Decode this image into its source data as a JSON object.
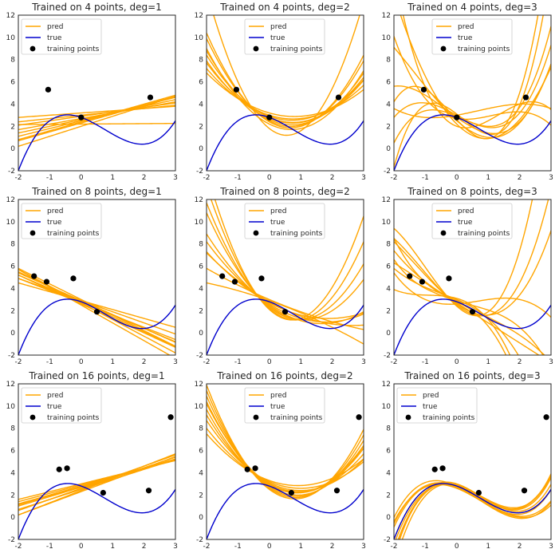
{
  "figure": {
    "legend": [
      "pred",
      "true",
      "training points"
    ],
    "colors": {
      "pred": "#ffa500",
      "true": "#0000cd",
      "points": "#000000",
      "frame": "#262626"
    },
    "xlim": [
      -2,
      3
    ],
    "ylim": [
      -2,
      12
    ],
    "x_ticks": [
      "-2",
      "-1",
      "0",
      "1",
      "2",
      "3"
    ],
    "y_ticks": [
      "-2",
      "0",
      "2",
      "4",
      "6",
      "8",
      "10",
      "12"
    ]
  },
  "chart_data": [
    {
      "type": "line",
      "title": "Trained on 4 points, deg=1",
      "true_coeffs": [
        2.8,
        -1.0,
        -0.9,
        0.4
      ],
      "points": [
        [
          -1.05,
          5.3
        ],
        [
          0.0,
          2.8
        ],
        [
          2.2,
          4.6
        ]
      ],
      "predictions": [
        [
          2.4,
          0.8
        ],
        [
          2.6,
          0.6
        ],
        [
          3.0,
          0.3
        ],
        [
          2.7,
          0.5
        ],
        [
          2.0,
          0.9
        ],
        [
          3.2,
          0.2
        ],
        [
          2.5,
          0.7
        ],
        [
          2.2,
          0.02
        ],
        [
          2.9,
          0.4
        ],
        [
          2.3,
          0.8
        ]
      ],
      "xlim": [
        -2,
        3
      ],
      "ylim": [
        -2,
        12
      ]
    },
    {
      "type": "line",
      "title": "Trained on 4 points, deg=2",
      "true_coeffs": [
        2.8,
        -1.0,
        -0.9,
        0.4
      ],
      "points": [
        [
          -1.05,
          5.3
        ],
        [
          0.0,
          2.8
        ],
        [
          2.2,
          4.6
        ]
      ],
      "predictions": [
        [
          2.8,
          -1.2,
          0.8
        ],
        [
          3.0,
          -0.9,
          0.6
        ],
        [
          2.5,
          -1.5,
          1.1
        ],
        [
          1.8,
          -2.2,
          2.0
        ],
        [
          2.9,
          -1.0,
          0.7
        ],
        [
          2.6,
          -1.3,
          0.9
        ],
        [
          3.2,
          -0.8,
          0.5
        ],
        [
          2.4,
          -1.6,
          1.2
        ],
        [
          2.7,
          -1.1,
          0.75
        ],
        [
          2.2,
          -1.4,
          1.0
        ]
      ],
      "xlim": [
        -2,
        3
      ],
      "ylim": [
        -2,
        12
      ]
    },
    {
      "type": "line",
      "title": "Trained on 4 points, deg=3",
      "true_coeffs": [
        2.8,
        -1.0,
        -0.9,
        0.4
      ],
      "points": [
        [
          -1.05,
          5.3
        ],
        [
          0.0,
          2.8
        ],
        [
          2.2,
          4.6
        ]
      ],
      "predictions": [
        [
          2.8,
          -2.0,
          0.3,
          0.3
        ],
        [
          3.0,
          -1.5,
          0.0,
          0.4
        ],
        [
          2.5,
          -2.5,
          0.8,
          0.2
        ],
        [
          2.0,
          -1.0,
          2.0,
          -0.5
        ],
        [
          3.0,
          0.5,
          0.2,
          -0.1
        ],
        [
          2.6,
          -3.0,
          0.5,
          0.8
        ],
        [
          2.9,
          -1.2,
          -0.2,
          0.5
        ],
        [
          2.2,
          -2.8,
          1.5,
          0.0
        ],
        [
          2.7,
          -0.5,
          1.0,
          -0.3
        ],
        [
          3.1,
          -2.2,
          -0.5,
          0.9
        ]
      ],
      "xlim": [
        -2,
        3
      ],
      "ylim": [
        -2,
        12
      ]
    },
    {
      "type": "line",
      "title": "Trained on 8 points, deg=1",
      "true_coeffs": [
        2.8,
        -1.0,
        -0.9,
        0.4
      ],
      "points": [
        [
          -1.5,
          5.1
        ],
        [
          -1.1,
          4.6
        ],
        [
          -0.25,
          4.9
        ],
        [
          0.5,
          1.9
        ]
      ],
      "predictions": [
        [
          2.8,
          -1.2
        ],
        [
          2.7,
          -1.5
        ],
        [
          2.9,
          -1.0
        ],
        [
          2.6,
          -1.3
        ],
        [
          3.0,
          -1.4
        ],
        [
          2.5,
          -1.6
        ],
        [
          2.9,
          -0.8
        ],
        [
          2.8,
          -1.35
        ],
        [
          2.7,
          -1.1
        ],
        [
          2.9,
          -1.25
        ]
      ],
      "xlim": [
        -2,
        3
      ],
      "ylim": [
        -2,
        12
      ]
    },
    {
      "type": "line",
      "title": "Trained on 8 points, deg=2",
      "true_coeffs": [
        2.8,
        -1.0,
        -0.9,
        0.4
      ],
      "points": [
        [
          -1.5,
          5.1
        ],
        [
          -1.1,
          4.6
        ],
        [
          -0.25,
          4.9
        ],
        [
          0.5,
          1.9
        ]
      ],
      "predictions": [
        [
          2.5,
          -2.0,
          0.6
        ],
        [
          2.8,
          -1.6,
          0.3
        ],
        [
          2.4,
          -2.2,
          1.0
        ],
        [
          3.0,
          -1.2,
          0.1
        ],
        [
          2.2,
          -2.5,
          1.5
        ],
        [
          2.9,
          -1.0,
          -0.1
        ],
        [
          2.6,
          -1.8,
          0.5
        ],
        [
          2.3,
          -2.3,
          1.2
        ],
        [
          2.7,
          -1.5,
          0.4
        ],
        [
          2.1,
          -2.6,
          1.8
        ]
      ],
      "xlim": [
        -2,
        3
      ],
      "ylim": [
        -2,
        12
      ]
    },
    {
      "type": "line",
      "title": "Trained on 8 points, deg=3",
      "true_coeffs": [
        2.8,
        -1.0,
        -0.9,
        0.4
      ],
      "points": [
        [
          -1.5,
          5.1
        ],
        [
          -1.1,
          4.6
        ],
        [
          -0.25,
          4.9
        ],
        [
          0.5,
          1.9
        ]
      ],
      "predictions": [
        [
          2.8,
          -1.5,
          0.2,
          -0.1
        ],
        [
          2.6,
          -2.0,
          0.8,
          0.2
        ],
        [
          3.0,
          -1.2,
          -0.3,
          -0.2
        ],
        [
          2.5,
          -2.2,
          1.0,
          0.3
        ],
        [
          3.1,
          -0.8,
          -0.8,
          -0.3
        ],
        [
          2.4,
          -2.5,
          1.5,
          0.5
        ],
        [
          2.9,
          -1.0,
          0.4,
          -0.25
        ],
        [
          2.7,
          -1.8,
          0.0,
          0.0
        ],
        [
          2.6,
          0.2,
          0.4,
          -0.2
        ],
        [
          2.8,
          -1.3,
          -0.5,
          -0.4
        ]
      ],
      "xlim": [
        -2,
        3
      ],
      "ylim": [
        -2,
        12
      ]
    },
    {
      "type": "line",
      "title": "Trained on 16 points, deg=1",
      "true_coeffs": [
        2.8,
        -1.0,
        -0.9,
        0.4
      ],
      "points": [
        [
          -0.7,
          4.3
        ],
        [
          -0.45,
          4.4
        ],
        [
          0.7,
          2.2
        ],
        [
          2.15,
          2.4
        ],
        [
          2.85,
          9.0
        ]
      ],
      "predictions": [
        [
          2.6,
          1.0
        ],
        [
          2.8,
          0.8
        ],
        [
          2.4,
          1.1
        ],
        [
          3.0,
          0.7
        ],
        [
          2.5,
          0.9
        ],
        [
          2.7,
          0.85
        ],
        [
          2.3,
          1.05
        ],
        [
          2.9,
          0.75
        ],
        [
          2.55,
          0.95
        ],
        [
          2.75,
          0.82
        ]
      ],
      "xlim": [
        -2,
        3
      ],
      "ylim": [
        -2,
        12
      ]
    },
    {
      "type": "line",
      "title": "Trained on 16 points, deg=2",
      "true_coeffs": [
        2.8,
        -1.0,
        -0.9,
        0.4
      ],
      "points": [
        [
          -0.7,
          4.3
        ],
        [
          -0.45,
          4.4
        ],
        [
          0.7,
          2.2
        ],
        [
          2.15,
          2.4
        ],
        [
          2.85,
          9.0
        ]
      ],
      "predictions": [
        [
          3.0,
          -1.5,
          0.8
        ],
        [
          2.8,
          -1.8,
          1.0
        ],
        [
          3.2,
          -1.2,
          0.6
        ],
        [
          2.6,
          -2.0,
          1.2
        ],
        [
          3.1,
          -1.4,
          0.7
        ],
        [
          2.9,
          -1.6,
          0.9
        ],
        [
          3.3,
          -1.0,
          0.55
        ],
        [
          2.7,
          -1.9,
          1.1
        ],
        [
          3.0,
          -1.7,
          0.95
        ],
        [
          2.5,
          -2.1,
          1.3
        ]
      ],
      "xlim": [
        -2,
        3
      ],
      "ylim": [
        -2,
        12
      ]
    },
    {
      "type": "line",
      "title": "Trained on 16 points, deg=3",
      "true_coeffs": [
        2.8,
        -1.0,
        -0.9,
        0.4
      ],
      "points": [
        [
          -0.7,
          4.3
        ],
        [
          -0.45,
          4.4
        ],
        [
          0.7,
          2.2
        ],
        [
          2.15,
          2.4
        ],
        [
          2.85,
          9.0
        ]
      ],
      "predictions": [
        [
          2.8,
          -1.0,
          -0.9,
          0.4
        ],
        [
          2.9,
          -0.8,
          -1.0,
          0.45
        ],
        [
          2.7,
          -1.2,
          -0.8,
          0.35
        ],
        [
          3.0,
          -0.9,
          -1.1,
          0.5
        ],
        [
          2.6,
          -1.1,
          -0.7,
          0.3
        ],
        [
          2.8,
          -1.3,
          -0.6,
          0.38
        ],
        [
          2.9,
          -0.7,
          -1.2,
          0.48
        ],
        [
          2.7,
          -1.0,
          -0.95,
          0.42
        ],
        [
          2.75,
          -1.15,
          -0.75,
          0.33
        ],
        [
          2.85,
          -0.85,
          -1.05,
          0.47
        ]
      ],
      "xlim": [
        -2,
        3
      ],
      "ylim": [
        -2,
        12
      ]
    }
  ]
}
